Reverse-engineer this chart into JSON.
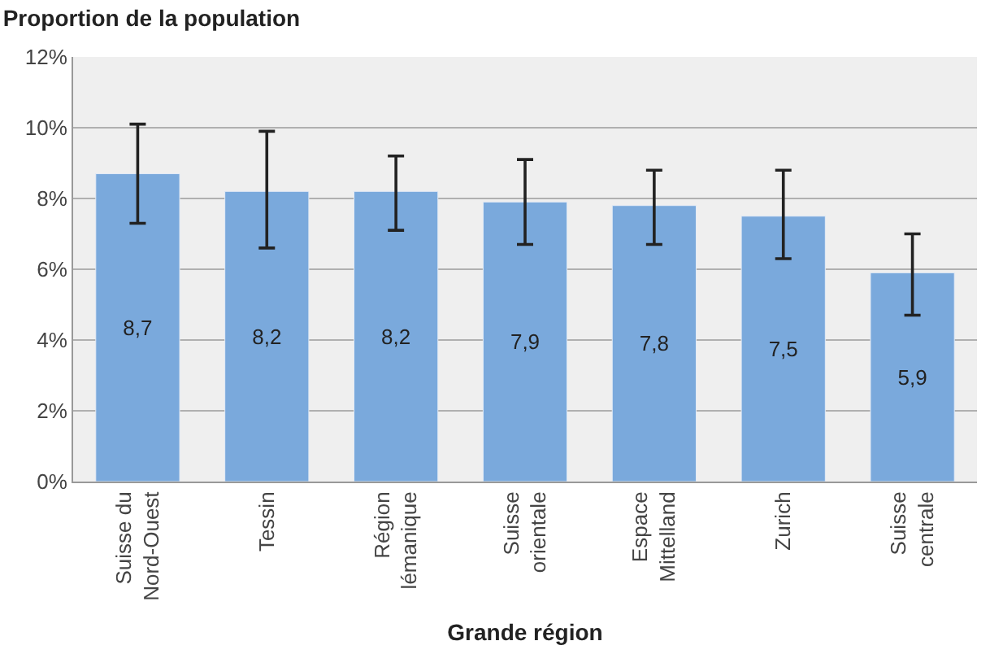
{
  "chart_data": {
    "type": "bar",
    "title": "Proportion de la population",
    "xlabel": "Grande région",
    "categories": [
      "Suisse du\nNord-Ouest",
      "Tessin",
      "Région\nlémanique",
      "Suisse\norientale",
      "Espace\nMittelland",
      "Zurich",
      "Suisse\ncentrale"
    ],
    "values": [
      8.7,
      8.2,
      8.2,
      7.9,
      7.8,
      7.5,
      5.9
    ],
    "value_labels": [
      "8,7",
      "8,2",
      "8,2",
      "7,9",
      "7,8",
      "7,5",
      "5,9"
    ],
    "errors": [
      [
        7.3,
        10.1
      ],
      [
        6.6,
        9.9
      ],
      [
        7.1,
        9.2
      ],
      [
        6.7,
        9.1
      ],
      [
        6.7,
        8.8
      ],
      [
        6.3,
        8.8
      ],
      [
        4.7,
        7.0
      ]
    ],
    "color": "#7aa9dc",
    "ylim": [
      0,
      12
    ],
    "yticks": [
      {
        "value": 0,
        "label": "0%"
      },
      {
        "value": 2,
        "label": "2%"
      },
      {
        "value": 4,
        "label": "4%"
      },
      {
        "value": 6,
        "label": "6%"
      },
      {
        "value": 8,
        "label": "8%"
      },
      {
        "value": 10,
        "label": "10%"
      },
      {
        "value": 12,
        "label": "12%"
      }
    ],
    "grid": "y"
  }
}
